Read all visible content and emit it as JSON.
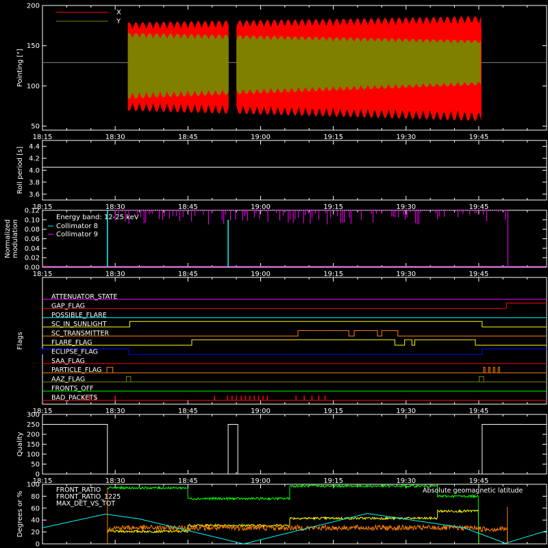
{
  "time_axis": {
    "tick_labels": [
      "18:15",
      "18:30",
      "18:45",
      "19:00",
      "19:15",
      "19:30",
      "19:45"
    ],
    "range_minutes": [
      0,
      104
    ]
  },
  "chart_data": [
    {
      "type": "line",
      "id": "pointing",
      "ylabel": "Pointing [\"]",
      "ylim": [
        45,
        200
      ],
      "y_ticks": [
        "50",
        "100",
        "150",
        "200"
      ],
      "reference_line": 129,
      "legend_placement": "top-left",
      "series": [
        {
          "name": "X",
          "color": "#ff0000",
          "segments": [
            {
              "start": 17.6,
              "end": 38.4
            },
            {
              "start": 40.0,
              "end": 90.5
            }
          ],
          "center": 129,
          "envelope_start": [
            50,
            60
          ],
          "envelope_end": [
            58,
            73
          ]
        },
        {
          "name": "Y",
          "color": "#808000",
          "segments": [
            {
              "start": 17.6,
              "end": 38.4
            },
            {
              "start": 40.0,
              "end": 90.5
            }
          ],
          "center": 129,
          "envelope_start": [
            37,
            45
          ],
          "envelope_end": [
            28,
            28
          ]
        }
      ]
    },
    {
      "type": "line",
      "id": "roll_period",
      "ylabel": "Roll period [s]",
      "ylim": [
        3.5,
        4.5
      ],
      "y_ticks": [
        "3.6",
        "3.8",
        "4.0",
        "4.2",
        "4.4"
      ],
      "series": [
        {
          "value": 4.05,
          "color": "#ffffff"
        }
      ]
    },
    {
      "type": "bar",
      "id": "modulation",
      "ylabel": "Normalized modulation",
      "ylim": [
        0,
        0.12
      ],
      "y_ticks": [
        "0.00",
        "0.02",
        "0.04",
        "0.06",
        "0.08",
        "0.10",
        "0.12"
      ],
      "annotation": "Energy band: 12-25 keV",
      "legend_placement": "top-left",
      "series": [
        {
          "name": "Collimator 8",
          "color": "#00ffff",
          "spikes": [
            {
              "t": 13.4,
              "v": 0.12
            },
            {
              "t": 38.3,
              "v": 0.1
            }
          ]
        },
        {
          "name": "Collimator 9",
          "color": "#ff00ff",
          "active_range": [
            15,
            96
          ],
          "spike_min": 0.09,
          "spike_max": 0.12
        }
      ]
    },
    {
      "type": "line",
      "id": "flags",
      "ylabel": "Flags",
      "series": [
        {
          "name": "ATTENUATOR_STATE",
          "color": "#ff00ff",
          "transitions": []
        },
        {
          "name": "GAP_FLAG",
          "color": "#ff0000",
          "transitions": [
            [
              95.7,
              1
            ]
          ]
        },
        {
          "name": "POSSIBLE_FLARE",
          "color": "#00ffff",
          "transitions": []
        },
        {
          "name": "SC_IN_SUNLIGHT",
          "color": "#ffff00",
          "transitions": [
            [
              18,
              1
            ],
            [
              90.7,
              0
            ]
          ]
        },
        {
          "name": "SC_TRANSMITTER",
          "color": "#ff8000",
          "transitions": [
            [
              52.7,
              1
            ],
            [
              63.2,
              0
            ],
            [
              64.3,
              1
            ],
            [
              69.1,
              0
            ],
            [
              70,
              1
            ],
            [
              73.3,
              0
            ]
          ]
        },
        {
          "name": "FLARE_FLAG",
          "color": "#ffff00",
          "transitions": [
            [
              30.8,
              1
            ],
            [
              72.7,
              0
            ],
            [
              74.7,
              1
            ],
            [
              76.2,
              0
            ],
            [
              76.8,
              1
            ],
            [
              89.3,
              0
            ]
          ]
        },
        {
          "name": "ECLIPSE_FLAG",
          "color": "#0000ff",
          "transitions": [
            [
              0,
              1
            ],
            [
              17.8,
              0
            ],
            [
              90.7,
              1
            ]
          ]
        },
        {
          "name": "SAA_FLAG",
          "color": "#ff0000",
          "transitions": []
        },
        {
          "name": "PARTICLE_FLAG",
          "color": "#ff8000",
          "transitions": [],
          "pulses": [
            [
              13.3,
              1.2
            ],
            [
              91,
              0.3
            ],
            [
              92,
              0.3
            ],
            [
              93,
              0.3
            ],
            [
              94,
              0.3
            ]
          ]
        },
        {
          "name": "AAZ_FLAG",
          "color": "#808000",
          "transitions": [],
          "pulses": [
            [
              17.3,
              0.9
            ],
            [
              90.1,
              0.9
            ]
          ]
        },
        {
          "name": "FRONTS_OFF",
          "color": "#00ff00",
          "transitions": []
        },
        {
          "name": "BAD_PACKETS",
          "color": "#ff0000",
          "transitions": [],
          "ticks": [
            8.4,
            9.7,
            11.0,
            15.0,
            35.5,
            38.2,
            39.1,
            40.0,
            41.0,
            41.9,
            42.8,
            43.7,
            44.6,
            45.5,
            46.4,
            52.3,
            54.0,
            55.6,
            57.0,
            58.3
          ]
        }
      ]
    },
    {
      "type": "line",
      "id": "quality",
      "ylabel": "Quality",
      "ylim": [
        0,
        300
      ],
      "y_ticks": [
        "0",
        "50",
        "100",
        "150",
        "200",
        "250",
        "300"
      ],
      "series": [
        {
          "color": "#ffffff",
          "steps": [
            [
              0,
              250
            ],
            [
              13.4,
              0
            ],
            [
              17.7,
              0
            ],
            [
              38.3,
              250
            ],
            [
              40.3,
              0
            ],
            [
              90.2,
              0
            ],
            [
              90.7,
              250
            ],
            [
              104,
              250
            ]
          ]
        }
      ]
    },
    {
      "type": "line",
      "id": "ratios",
      "ylabel": "Degrees or %",
      "ylim": [
        0,
        100
      ],
      "y_ticks": [
        "0",
        "20",
        "40",
        "60",
        "80",
        "100"
      ],
      "legend_placement": "top-left",
      "series": [
        {
          "name": "FRONT_RATIO",
          "color": "#ffff00",
          "steps": [
            [
              13.4,
              21
            ],
            [
              30,
              31
            ],
            [
              51,
              43
            ],
            [
              81.5,
              55
            ],
            [
              90,
              0
            ]
          ]
        },
        {
          "name": "FRONT_RATIO_1225",
          "color": "#00ff00",
          "steps": [
            [
              13.4,
              94
            ],
            [
              30,
              76
            ],
            [
              51,
              97
            ],
            [
              81.5,
              80
            ],
            [
              90,
              0
            ]
          ]
        },
        {
          "name": "MAX_DET_VS_TOT",
          "color": "#ff8000",
          "steps": [
            [
              13.4,
              27
            ],
            [
              90,
              25
            ],
            [
              95.9,
              0
            ]
          ]
        },
        {
          "name": "Absolute geomagnetic latitude",
          "color": "#00ffff",
          "points": [
            [
              0,
              27
            ],
            [
              13,
              50
            ],
            [
              20,
              42
            ],
            [
              41.5,
              0
            ],
            [
              67,
              51
            ],
            [
              87,
              27
            ],
            [
              95.5,
              1
            ],
            [
              104,
              22
            ]
          ]
        }
      ]
    }
  ]
}
